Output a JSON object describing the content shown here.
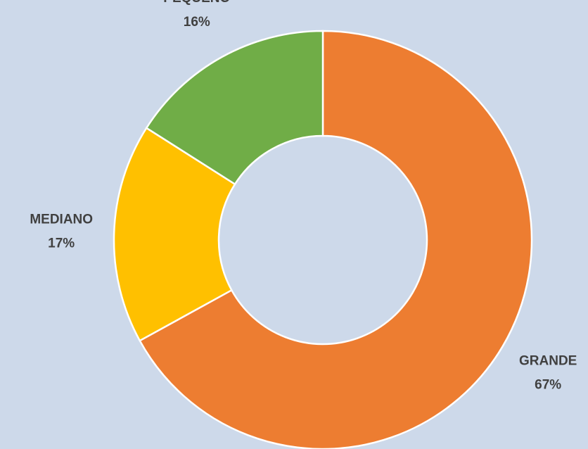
{
  "chart_data": {
    "type": "pie",
    "categories": [
      "GRANDE",
      "MEDIANO",
      "PEQUEÑO"
    ],
    "values": [
      67,
      17,
      16
    ],
    "value_labels": [
      "67%",
      "17%",
      "16%"
    ],
    "colors": [
      "#ed7d31",
      "#ffc000",
      "#70ad47"
    ]
  }
}
